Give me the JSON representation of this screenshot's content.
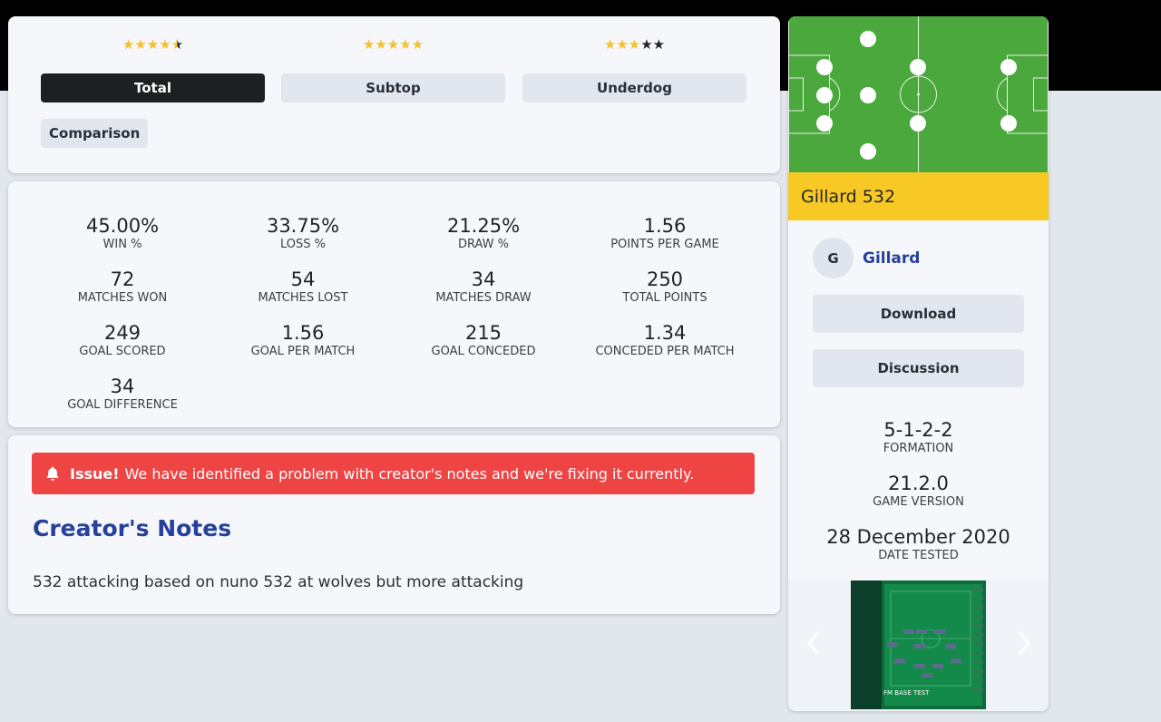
{
  "ratings": [
    {
      "stars_full": 4,
      "stars_half": 1,
      "stars_empty": 0
    },
    {
      "stars_full": 5,
      "stars_half": 0,
      "stars_empty": 0
    },
    {
      "stars_full": 3,
      "stars_half": 0,
      "stars_empty": 2
    }
  ],
  "tabs": [
    {
      "label": "Total",
      "active": true
    },
    {
      "label": "Subtop",
      "active": false
    },
    {
      "label": "Underdog",
      "active": false
    }
  ],
  "comparison_label": "Comparison",
  "stats": {
    "win_pct": {
      "value": "45.00%",
      "label": "WIN %"
    },
    "loss_pct": {
      "value": "33.75%",
      "label": "LOSS %"
    },
    "draw_pct": {
      "value": "21.25%",
      "label": "DRAW %"
    },
    "ppg": {
      "value": "1.56",
      "label": "POINTS PER GAME"
    },
    "won": {
      "value": "72",
      "label": "MATCHES WON"
    },
    "lost": {
      "value": "54",
      "label": "MATCHES LOST"
    },
    "drawn": {
      "value": "34",
      "label": "MATCHES DRAW"
    },
    "points": {
      "value": "250",
      "label": "TOTAL POINTS"
    },
    "scored": {
      "value": "249",
      "label": "GOAL SCORED"
    },
    "gpm": {
      "value": "1.56",
      "label": "GOAL PER MATCH"
    },
    "conceded": {
      "value": "215",
      "label": "GOAL CONCEDED"
    },
    "cpm": {
      "value": "1.34",
      "label": "CONCEDED PER MATCH"
    },
    "diff": {
      "value": "34",
      "label": "GOAL DIFFERENCE"
    }
  },
  "alert": {
    "strong": "Issue!",
    "text": "We have identified a problem with creator's notes and we're fixing it currently.",
    "icon": "bell-icon"
  },
  "notes": {
    "title": "Creator's Notes",
    "text": "532 attacking based on nuno 532 at wolves but more attacking"
  },
  "side": {
    "title": "Gillard 532",
    "author_initial": "G",
    "author_name": "Gillard",
    "download_label": "Download",
    "discussion_label": "Discussion",
    "formation": {
      "value": "5-1-2-2",
      "label": "FORMATION"
    },
    "version": {
      "value": "21.2.0",
      "label": "GAME VERSION"
    },
    "date": {
      "value": "28 December 2020",
      "label": "DATE TESTED"
    },
    "screenshot_caption": "FM BASE TEST"
  },
  "colors": {
    "pitch": "#4aa83c",
    "accent_yellow": "#f8c924",
    "link_blue": "#26409b",
    "alert_red": "#ef4444",
    "star_gold": "#f6c02b"
  }
}
